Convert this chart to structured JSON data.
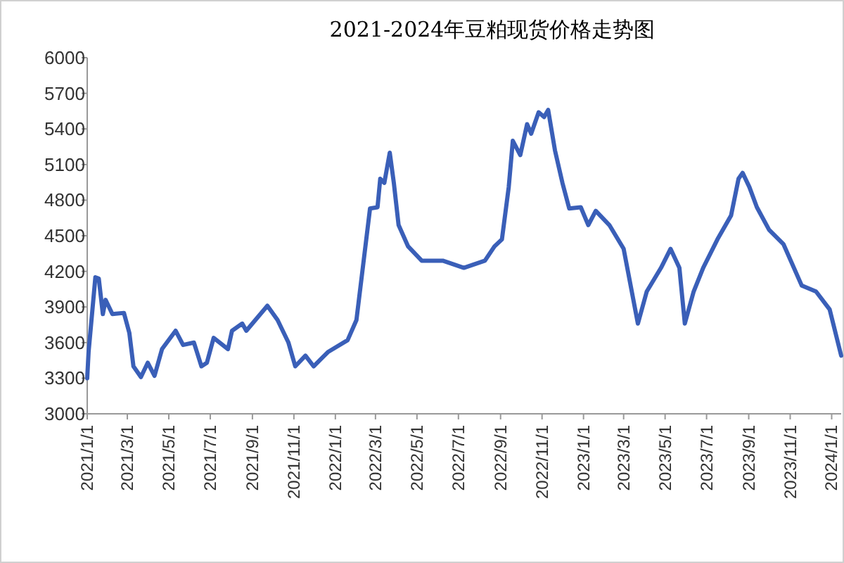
{
  "chart_data": {
    "type": "line",
    "title": "2021-2024年豆粕现货价格走势图",
    "x": [
      "2021-01-01",
      "2021-01-03",
      "2021-01-13",
      "2021-01-18",
      "2021-01-24",
      "2021-01-28",
      "2021-02-07",
      "2021-02-24",
      "2021-03-04",
      "2021-03-10",
      "2021-03-21",
      "2021-03-31",
      "2021-04-10",
      "2021-04-21",
      "2021-05-11",
      "2021-05-22",
      "2021-06-07",
      "2021-06-18",
      "2021-06-26",
      "2021-07-06",
      "2021-07-27",
      "2021-08-02",
      "2021-08-17",
      "2021-08-23",
      "2021-09-23",
      "2021-10-08",
      "2021-10-24",
      "2021-11-03",
      "2021-11-18",
      "2021-11-30",
      "2021-12-21",
      "2022-01-19",
      "2022-02-01",
      "2022-02-21",
      "2022-03-04",
      "2022-03-08",
      "2022-03-14",
      "2022-03-22",
      "2022-03-28",
      "2022-04-04",
      "2022-04-18",
      "2022-05-08",
      "2022-06-08",
      "2022-07-09",
      "2022-08-09",
      "2022-08-23",
      "2022-09-03",
      "2022-09-13",
      "2022-09-19",
      "2022-09-30",
      "2022-10-10",
      "2022-10-16",
      "2022-10-27",
      "2022-11-04",
      "2022-11-10",
      "2022-11-20",
      "2022-12-01",
      "2022-12-11",
      "2022-12-28",
      "2023-01-08",
      "2023-01-19",
      "2023-02-08",
      "2023-03-01",
      "2023-03-22",
      "2023-04-04",
      "2023-04-25",
      "2023-05-09",
      "2023-05-22",
      "2023-05-30",
      "2023-06-12",
      "2023-06-26",
      "2023-07-17",
      "2023-08-06",
      "2023-08-17",
      "2023-08-23",
      "2023-09-02",
      "2023-09-13",
      "2023-10-01",
      "2023-10-22",
      "2023-11-18",
      "2023-12-09",
      "2023-12-29",
      "2024-01-15"
    ],
    "values": [
      3300,
      3520,
      4150,
      4140,
      3840,
      3960,
      3840,
      3850,
      3680,
      3400,
      3310,
      3430,
      3320,
      3545,
      3700,
      3580,
      3600,
      3400,
      3430,
      3640,
      3545,
      3700,
      3760,
      3700,
      3910,
      3790,
      3600,
      3400,
      3490,
      3400,
      3520,
      3620,
      3790,
      4730,
      4740,
      4980,
      4945,
      5200,
      4945,
      4590,
      4410,
      4290,
      4290,
      4230,
      4290,
      4410,
      4470,
      4910,
      5300,
      5180,
      5440,
      5360,
      5540,
      5500,
      5560,
      5220,
      4945,
      4730,
      4740,
      4590,
      4710,
      4590,
      4390,
      3760,
      4030,
      4230,
      4390,
      4230,
      3760,
      4030,
      4230,
      4470,
      4670,
      4980,
      5030,
      4910,
      4740,
      4550,
      4430,
      4080,
      4030,
      3880,
      3490
    ],
    "color": "#3a5fb8",
    "xlim": [
      "2021-01-01",
      "2024-01-15"
    ],
    "xticks": [
      {
        "value": "2021-01-01",
        "label": "2021/1/1"
      },
      {
        "value": "2021-03-01",
        "label": "2021/3/1"
      },
      {
        "value": "2021-05-01",
        "label": "2021/5/1"
      },
      {
        "value": "2021-07-01",
        "label": "2021/7/1"
      },
      {
        "value": "2021-09-01",
        "label": "2021/9/1"
      },
      {
        "value": "2021-11-01",
        "label": "2021/11/1"
      },
      {
        "value": "2022-01-01",
        "label": "2022/1/1"
      },
      {
        "value": "2022-03-01",
        "label": "2022/3/1"
      },
      {
        "value": "2022-05-01",
        "label": "2022/5/1"
      },
      {
        "value": "2022-07-01",
        "label": "2022/7/1"
      },
      {
        "value": "2022-09-01",
        "label": "2022/9/1"
      },
      {
        "value": "2022-11-01",
        "label": "2022/11/1"
      },
      {
        "value": "2023-01-01",
        "label": "2023/1/1"
      },
      {
        "value": "2023-03-01",
        "label": "2023/3/1"
      },
      {
        "value": "2023-05-01",
        "label": "2023/5/1"
      },
      {
        "value": "2023-07-01",
        "label": "2023/7/1"
      },
      {
        "value": "2023-09-01",
        "label": "2023/9/1"
      },
      {
        "value": "2023-11-01",
        "label": "2023/11/1"
      },
      {
        "value": "2024-01-01",
        "label": "2024/1/1"
      }
    ],
    "ylim": [
      3000,
      6000
    ],
    "yticks": [
      3000,
      3300,
      3600,
      3900,
      4200,
      4500,
      4800,
      5100,
      5400,
      5700,
      6000
    ],
    "grid": false,
    "legend": false,
    "marker": "none",
    "line_style": "solid"
  }
}
